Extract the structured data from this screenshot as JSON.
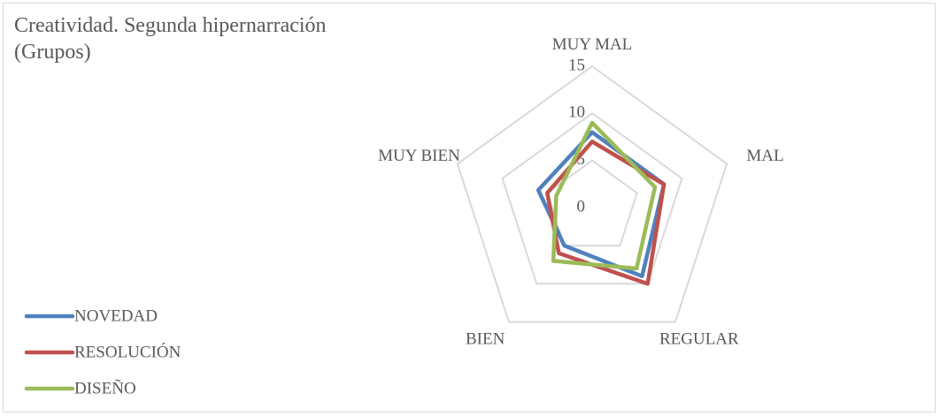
{
  "chart_data": {
    "type": "radar",
    "title": "Creatividad. Segunda hipernarración (Grupos)",
    "categories": [
      "MUY MAL",
      "MAL",
      "REGULAR",
      "BIEN",
      "MUY BIEN"
    ],
    "series": [
      {
        "name": "NOVEDAD",
        "color": "#4f81bd",
        "values": [
          8,
          8,
          9,
          5,
          6
        ]
      },
      {
        "name": "RESOLUCIÓN",
        "color": "#c0504d",
        "values": [
          7,
          8,
          10,
          6,
          5
        ]
      },
      {
        "name": "DISEÑO",
        "color": "#9bbb59",
        "values": [
          9,
          7,
          8,
          7,
          4
        ]
      }
    ],
    "rlim": [
      0,
      15
    ],
    "rticks": [
      0,
      5,
      10,
      15
    ],
    "grid": true,
    "legend": "bottom-left"
  }
}
